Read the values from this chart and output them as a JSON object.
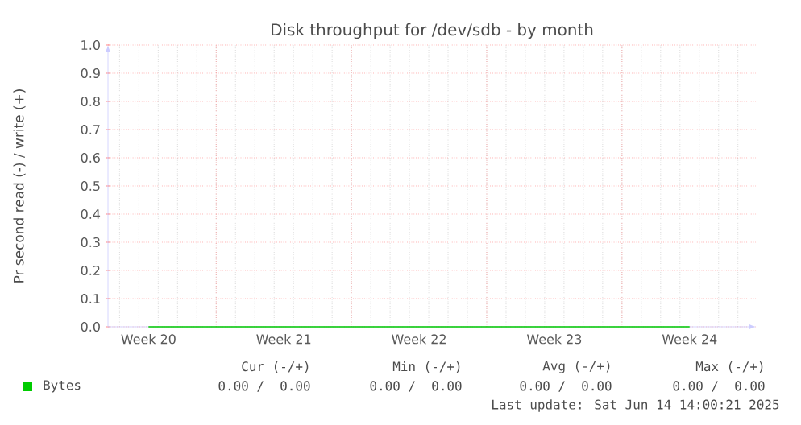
{
  "chart_data": {
    "type": "line",
    "title": "Disk throughput for /dev/sdb - by month",
    "ylabel": "Pr second read (-) / write (+)",
    "categories": [
      "Week 20",
      "Week 21",
      "Week 22",
      "Week 23",
      "Week 24"
    ],
    "series": [
      {
        "name": "Bytes",
        "color": "#00cc00",
        "values": [
          0,
          0,
          0,
          0,
          0
        ]
      }
    ],
    "ylim": [
      0,
      1
    ],
    "yticks": [
      {
        "value": 0,
        "label": "0.0"
      },
      {
        "value": 0.1,
        "label": "0.1"
      },
      {
        "value": 0.2,
        "label": "0.2"
      },
      {
        "value": 0.3,
        "label": "0.3"
      },
      {
        "value": 0.4,
        "label": "0.4"
      },
      {
        "value": 0.5,
        "label": "0.5"
      },
      {
        "value": 0.6,
        "label": "0.6"
      },
      {
        "value": 0.7,
        "label": "0.7"
      },
      {
        "value": 0.8,
        "label": "0.8"
      },
      {
        "value": 0.9,
        "label": "0.9"
      },
      {
        "value": 1,
        "label": "1.0"
      }
    ],
    "grid": true,
    "legend": "bottom left",
    "annotations": [
      "Cur (-/+)",
      "Min (-/+)",
      "Avg (-/+)",
      "Max (-/+)",
      "0.00 /  0.00",
      "0.00 /  0.00",
      "0.00 /  0.00",
      "0.00 /  0.00",
      "Last update: Sat Jun 14 14:00:21 2025"
    ]
  }
}
